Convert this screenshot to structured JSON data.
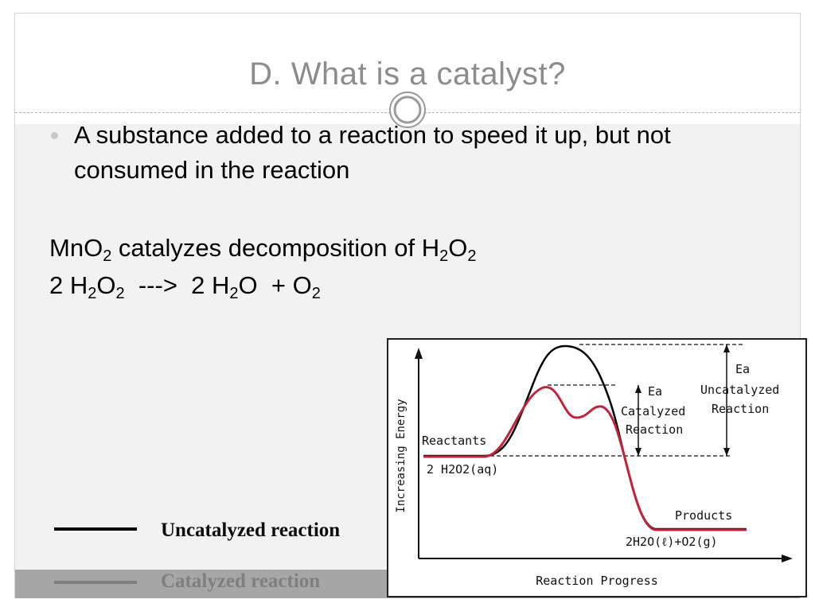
{
  "slide": {
    "title": "D.  What is a catalyst?",
    "bullet": "A substance added to a reaction to speed it up, but not consumed in the reaction",
    "line1": {
      "a": "MnO",
      "a_sub": "2",
      "b": " catalyzes decomposition of H",
      "b_sub": "2",
      "c": "O",
      "c_sub": "2"
    },
    "line2": {
      "a": "2 H",
      "a_sub": "2",
      "b": "O",
      "b_sub": "2",
      "c": "  --->  2 H",
      "c_sub": "2",
      "d": "O  + O",
      "d_sub": "2"
    }
  },
  "legend": {
    "uncatalyzed": "Uncatalyzed reaction",
    "catalyzed": "Catalyzed reaction",
    "colors": {
      "uncatalyzed": "#000000",
      "catalyzed": "#7f7f7f"
    }
  },
  "chart_data": {
    "type": "line",
    "xlabel": "Reaction Progress",
    "ylabel": "Increasing Energy",
    "series": [
      {
        "color": "#000000"
      },
      {
        "color": "#c0243c"
      }
    ],
    "annotations": {
      "reactants": "Reactants",
      "reactants_formula": "2 H2O2(aq)",
      "products": "Products",
      "products_formula": "2H2O(ℓ)+O2(g)",
      "ea_cat": "Ea",
      "catalyzed_1": "Catalyzed",
      "catalyzed_2": "Reaction",
      "ea_uncat": "Ea",
      "uncatalyzed_1": "Uncatalyzed",
      "uncatalyzed_2": "Reaction"
    }
  }
}
